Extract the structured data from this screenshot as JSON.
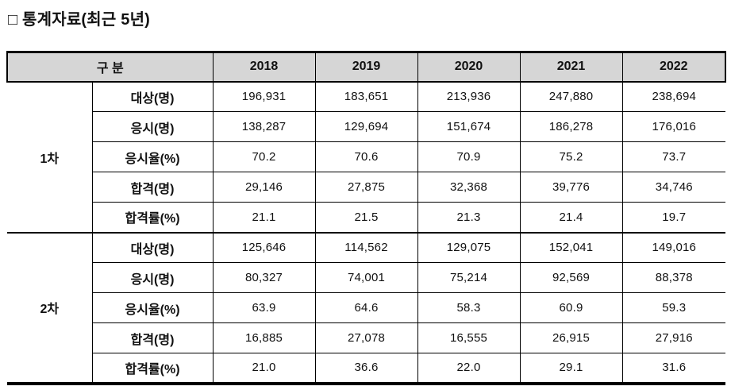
{
  "title": "□ 통계자료(최근 5년)",
  "table": {
    "corner_header": "구 분",
    "years": [
      "2018",
      "2019",
      "2020",
      "2021",
      "2022"
    ],
    "groups": [
      {
        "name": "1차",
        "rows": [
          {
            "label": "대상(명)",
            "values": [
              "196,931",
              "183,651",
              "213,936",
              "247,880",
              "238,694"
            ]
          },
          {
            "label": "응시(명)",
            "values": [
              "138,287",
              "129,694",
              "151,674",
              "186,278",
              "176,016"
            ]
          },
          {
            "label": "응시율(%)",
            "values": [
              "70.2",
              "70.6",
              "70.9",
              "75.2",
              "73.7"
            ]
          },
          {
            "label": "합격(명)",
            "values": [
              "29,146",
              "27,875",
              "32,368",
              "39,776",
              "34,746"
            ]
          },
          {
            "label": "합격률(%)",
            "values": [
              "21.1",
              "21.5",
              "21.3",
              "21.4",
              "19.7"
            ]
          }
        ]
      },
      {
        "name": "2차",
        "rows": [
          {
            "label": "대상(명)",
            "values": [
              "125,646",
              "114,562",
              "129,075",
              "152,041",
              "149,016"
            ]
          },
          {
            "label": "응시(명)",
            "values": [
              "80,327",
              "74,001",
              "75,214",
              "92,569",
              "88,378"
            ]
          },
          {
            "label": "응시율(%)",
            "values": [
              "63.9",
              "64.6",
              "58.3",
              "60.9",
              "59.3"
            ]
          },
          {
            "label": "합격(명)",
            "values": [
              "16,885",
              "27,078",
              "16,555",
              "26,915",
              "27,916"
            ]
          },
          {
            "label": "합격률(%)",
            "values": [
              "21.0",
              "36.6",
              "22.0",
              "29.1",
              "31.6"
            ]
          }
        ]
      }
    ]
  },
  "colors": {
    "header_background": "#d6d6d6",
    "border": "#000000",
    "text": "#111111"
  }
}
